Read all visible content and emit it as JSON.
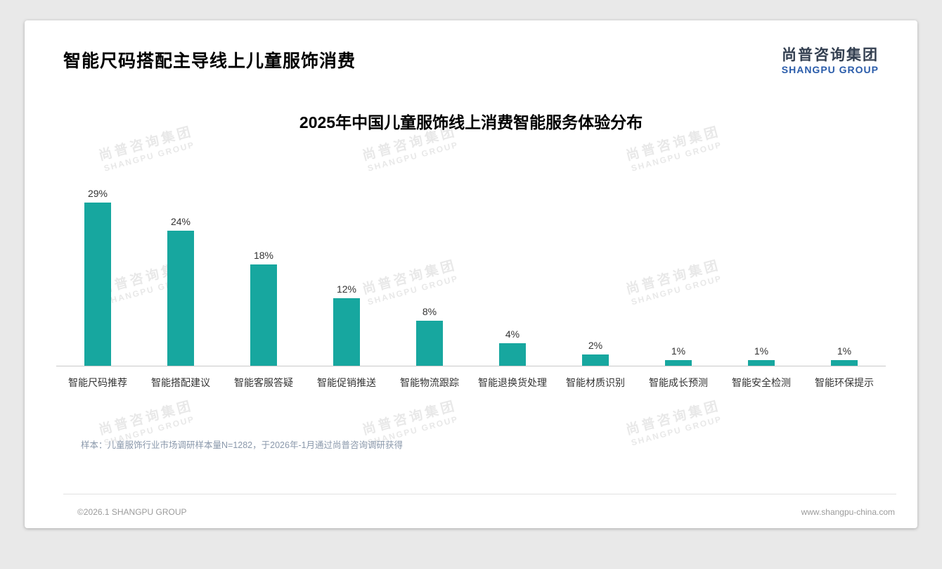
{
  "header": {
    "title": "智能尺码搭配主导线上儿童服饰消费",
    "logo_cn": "尚普咨询集团",
    "logo_en": "SHANGPU GROUP"
  },
  "colors": {
    "bar_teal": "#17A79F",
    "logo_blue": "#2A5CAA",
    "logo_cn_dark": "#333F50"
  },
  "chart_data": {
    "type": "bar",
    "title": "2025年中国儿童服饰线上消费智能服务体验分布",
    "categories": [
      "智能尺码推荐",
      "智能搭配建议",
      "智能客服答疑",
      "智能促销推送",
      "智能物流跟踪",
      "智能退换货处理",
      "智能材质识别",
      "智能成长预测",
      "智能安全检测",
      "智能环保提示"
    ],
    "values": [
      29,
      24,
      18,
      12,
      8,
      4,
      2,
      1,
      1,
      1
    ],
    "unit": "%",
    "value_labels": [
      "29%",
      "24%",
      "18%",
      "12%",
      "8%",
      "4%",
      "2%",
      "1%",
      "1%",
      "1%"
    ],
    "bar_color": "#17A79F",
    "xlabel": "",
    "ylabel": "",
    "ylim": [
      0,
      30
    ],
    "grid": false,
    "legend": "none"
  },
  "watermark": {
    "line1": "尚普咨询集团",
    "line2": "SHANGPU GROUP"
  },
  "footer": {
    "note": "样本：儿童服饰行业市场调研样本量N=1282，于2026年-1月通过尚普咨询调研获得",
    "copyright": "©2026.1 SHANGPU GROUP",
    "website": "www.shangpu-china.com"
  }
}
